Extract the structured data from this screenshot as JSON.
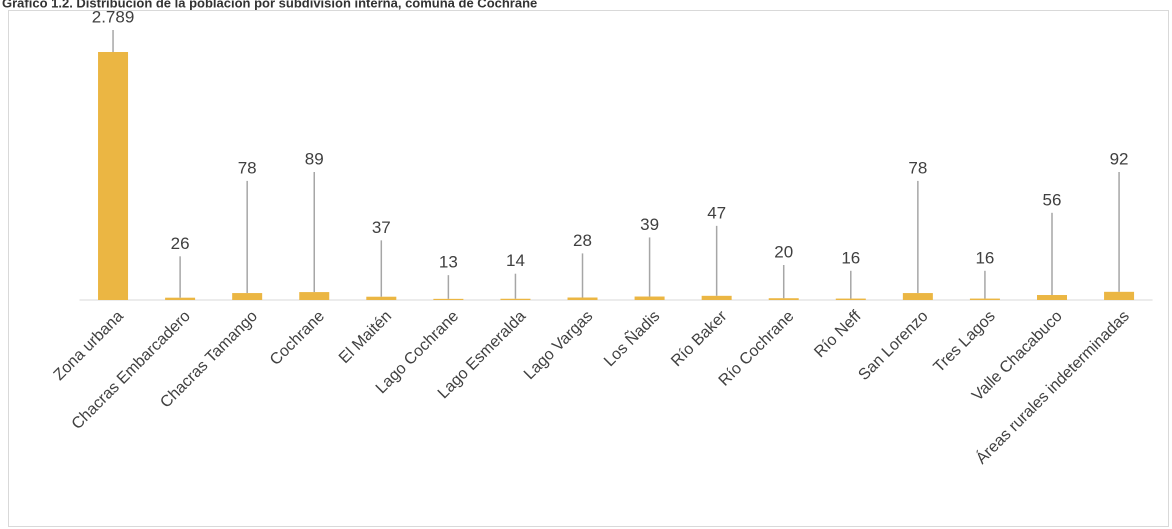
{
  "chart_data": {
    "type": "bar",
    "title": "Gráfico 1.2. Distribución de la población por subdivisión interna, comuna de Cochrane",
    "categories": [
      "Zona urbana",
      "Chacras Embarcadero",
      "Chacras Tamango",
      "Cochrane",
      "El Maitén",
      "Lago Cochrane",
      "Lago Esmeralda",
      "Lago Vargas",
      "Los Ñadis",
      "Río Baker",
      "Río Cochrane",
      "Río Neff",
      "San Lorenzo",
      "Tres Lagos",
      "Valle Chacabuco",
      "Áreas rurales indeterminadas"
    ],
    "values": [
      2789,
      26,
      78,
      89,
      37,
      13,
      14,
      28,
      39,
      47,
      20,
      16,
      78,
      16,
      56,
      92
    ],
    "value_labels": [
      "2.789",
      "26",
      "78",
      "89",
      "37",
      "13",
      "14",
      "28",
      "39",
      "47",
      "20",
      "16",
      "78",
      "16",
      "56",
      "92"
    ],
    "color": "#ebb643"
  }
}
